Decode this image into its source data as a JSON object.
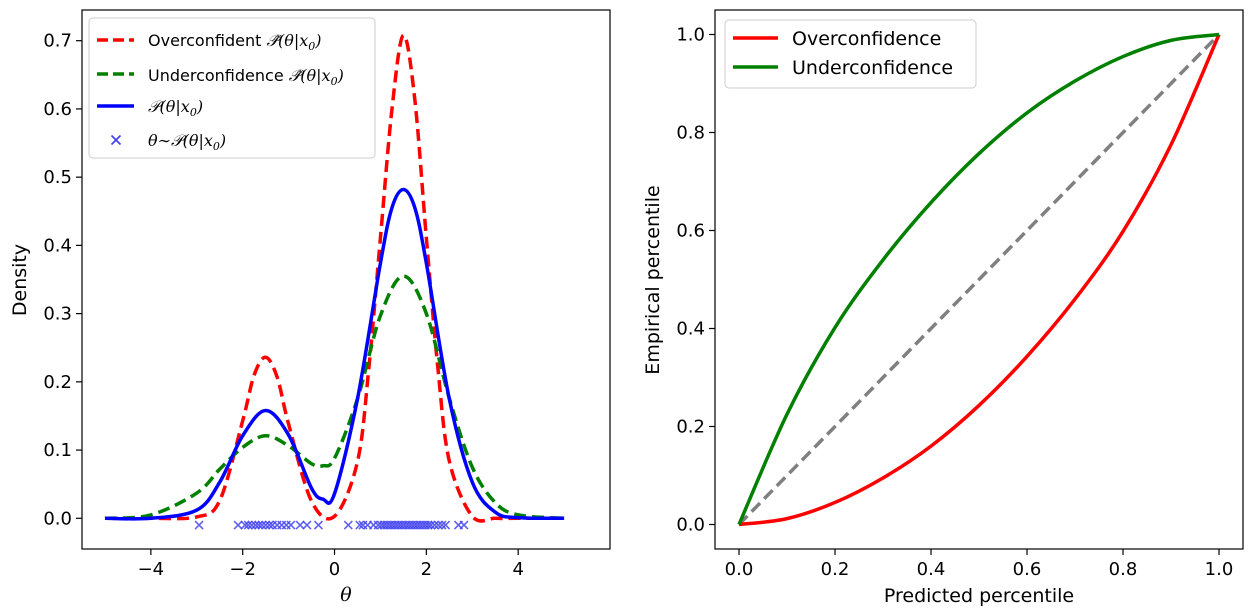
{
  "chart_data": [
    {
      "type": "line",
      "xlabel": "θ",
      "ylabel": "Density",
      "xlim": [
        -5.5,
        6.0
      ],
      "ylim": [
        -0.045,
        0.745
      ],
      "xticks": [
        -4,
        -2,
        0,
        2,
        4
      ],
      "xtick_labels": [
        "−4",
        "−2",
        "0",
        "2",
        "4"
      ],
      "yticks": [
        0.0,
        0.1,
        0.2,
        0.3,
        0.4,
        0.5,
        0.6,
        0.7
      ],
      "ytick_labels": [
        "0.0",
        "0.1",
        "0.2",
        "0.3",
        "0.4",
        "0.5",
        "0.6",
        "0.7"
      ],
      "grid": false,
      "legend_position": "upper-left",
      "series": [
        {
          "name": "Overconfident 𝒫̂(θ|x₀)",
          "legend_prefix": "Overconfident ",
          "legend_math": "𝒫̂(θ|x",
          "legend_sub": "0",
          "legend_suffix": ")",
          "style": "dashed",
          "color": "#ff0000",
          "x": [
            -5.0,
            -4.0,
            -3.0,
            -2.5,
            -2.0,
            -1.75,
            -1.5,
            -1.25,
            -1.0,
            -0.5,
            0.0,
            0.5,
            0.75,
            1.0,
            1.25,
            1.5,
            1.75,
            2.0,
            2.25,
            2.5,
            3.0,
            3.5,
            4.0,
            5.0
          ],
          "values": [
            0.0,
            0.0,
            0.002,
            0.026,
            0.143,
            0.21,
            0.236,
            0.207,
            0.138,
            0.025,
            0.003,
            0.083,
            0.222,
            0.411,
            0.599,
            0.708,
            0.613,
            0.411,
            0.221,
            0.084,
            0.003,
            0.0,
            0.0,
            0.0
          ]
        },
        {
          "name": "Underconfidence 𝒫̂(θ|x₀)",
          "legend_prefix": "Underconfidence ",
          "legend_math": "𝒫̂(θ|x",
          "legend_sub": "0",
          "legend_suffix": ")",
          "style": "dashed",
          "color": "#008000",
          "x": [
            -5.0,
            -4.0,
            -3.0,
            -2.5,
            -2.0,
            -1.5,
            -1.0,
            -0.5,
            -0.25,
            0.0,
            0.5,
            1.0,
            1.5,
            2.0,
            2.5,
            3.0,
            3.5,
            4.0,
            5.0
          ],
          "values": [
            0.0,
            0.005,
            0.037,
            0.072,
            0.104,
            0.121,
            0.106,
            0.08,
            0.077,
            0.088,
            0.175,
            0.297,
            0.355,
            0.3,
            0.176,
            0.075,
            0.023,
            0.005,
            0.0
          ]
        },
        {
          "name": "𝒫(θ|x₀)",
          "legend_prefix": "",
          "legend_math": "𝒫(θ|x",
          "legend_sub": "0",
          "legend_suffix": ")",
          "style": "solid",
          "color": "#0000ff",
          "x": [
            -5.0,
            -4.0,
            -3.0,
            -2.5,
            -2.0,
            -1.5,
            -1.0,
            -0.5,
            -0.25,
            0.0,
            0.5,
            1.0,
            1.25,
            1.5,
            1.75,
            2.0,
            2.5,
            3.0,
            3.5,
            4.0,
            5.0
          ],
          "values": [
            0.0,
            0.0,
            0.012,
            0.053,
            0.121,
            0.158,
            0.122,
            0.044,
            0.028,
            0.036,
            0.175,
            0.374,
            0.455,
            0.482,
            0.455,
            0.374,
            0.175,
            0.053,
            0.009,
            0.001,
            0.0
          ]
        }
      ],
      "scatter": {
        "name": "θ∼𝒫(θ|x₀)",
        "legend_math": "θ∼𝒫(θ|x",
        "legend_sub": "0",
        "legend_suffix": ")",
        "marker": "x",
        "color": "#4444ee",
        "y": -0.01,
        "x": [
          -2.95,
          -2.1,
          -1.95,
          -1.88,
          -1.8,
          -1.72,
          -1.65,
          -1.58,
          -1.5,
          -1.42,
          -1.35,
          -1.25,
          -1.15,
          -1.05,
          -0.95,
          -0.75,
          -0.6,
          -0.35,
          0.3,
          0.55,
          0.62,
          0.72,
          0.85,
          0.95,
          1.02,
          1.08,
          1.14,
          1.2,
          1.26,
          1.32,
          1.38,
          1.44,
          1.5,
          1.56,
          1.62,
          1.68,
          1.74,
          1.8,
          1.86,
          1.92,
          1.98,
          2.04,
          2.1,
          2.18,
          2.26,
          2.34,
          2.42,
          2.7,
          2.82
        ]
      }
    },
    {
      "type": "line",
      "xlabel": "Predicted percentile",
      "ylabel": "Empirical percentile",
      "xlim": [
        -0.05,
        1.05
      ],
      "ylim": [
        -0.05,
        1.05
      ],
      "xticks": [
        0.0,
        0.2,
        0.4,
        0.6,
        0.8,
        1.0
      ],
      "xtick_labels": [
        "0.0",
        "0.2",
        "0.4",
        "0.6",
        "0.8",
        "1.0"
      ],
      "yticks": [
        0.0,
        0.2,
        0.4,
        0.6,
        0.8,
        1.0
      ],
      "ytick_labels": [
        "0.0",
        "0.2",
        "0.4",
        "0.6",
        "0.8",
        "1.0"
      ],
      "grid": false,
      "legend_position": "upper-left",
      "series": [
        {
          "name": "Overconfidence",
          "style": "solid",
          "color": "#ff0000",
          "x": [
            0.0,
            0.1,
            0.2,
            0.3,
            0.4,
            0.5,
            0.6,
            0.7,
            0.8,
            0.9,
            1.0
          ],
          "values": [
            0.0,
            0.012,
            0.045,
            0.095,
            0.16,
            0.243,
            0.343,
            0.46,
            0.598,
            0.775,
            1.0
          ]
        },
        {
          "name": "Underconfidence",
          "style": "solid",
          "color": "#008000",
          "x": [
            0.0,
            0.1,
            0.2,
            0.3,
            0.4,
            0.5,
            0.6,
            0.7,
            0.8,
            0.9,
            1.0
          ],
          "values": [
            0.0,
            0.225,
            0.402,
            0.54,
            0.657,
            0.757,
            0.84,
            0.905,
            0.955,
            0.988,
            1.0
          ]
        },
        {
          "style": "dashed",
          "color": "#808080",
          "x": [
            0.0,
            1.0
          ],
          "values": [
            0.0,
            1.0
          ]
        }
      ]
    }
  ]
}
